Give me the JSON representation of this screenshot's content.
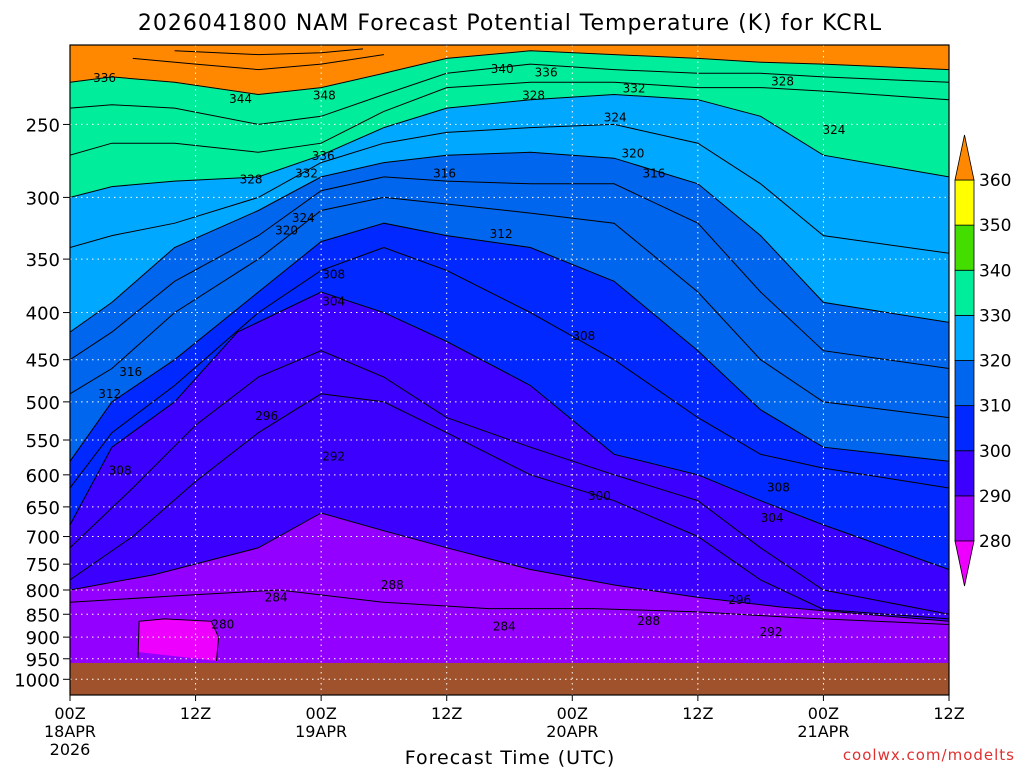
{
  "chart_data": {
    "type": "heatmap",
    "title": "2026041800 NAM Forecast Potential Temperature (K) for KCRL",
    "xlabel": "Forecast Time (UTC)",
    "ylabel": "",
    "credit": "coolwx.com/modelts",
    "x_ticks": [
      {
        "hour": 0,
        "line1": "00Z",
        "line2": "18APR",
        "line3": "2026"
      },
      {
        "hour": 12,
        "line1": "12Z",
        "line2": "",
        "line3": ""
      },
      {
        "hour": 24,
        "line1": "00Z",
        "line2": "19APR",
        "line3": ""
      },
      {
        "hour": 36,
        "line1": "12Z",
        "line2": "",
        "line3": ""
      },
      {
        "hour": 48,
        "line1": "00Z",
        "line2": "20APR",
        "line3": ""
      },
      {
        "hour": 60,
        "line1": "12Z",
        "line2": "",
        "line3": ""
      },
      {
        "hour": 72,
        "line1": "00Z",
        "line2": "21APR",
        "line3": ""
      },
      {
        "hour": 84,
        "line1": "12Z",
        "line2": "",
        "line3": ""
      }
    ],
    "xlim": [
      0,
      84
    ],
    "y_ticks": [
      250,
      300,
      350,
      400,
      450,
      500,
      550,
      600,
      650,
      700,
      750,
      800,
      850,
      900,
      950,
      1000
    ],
    "ylim": [
      205,
      1040
    ],
    "y_scale": "log",
    "grid": true,
    "colorbar": {
      "levels": [
        280,
        290,
        300,
        310,
        320,
        330,
        340,
        350,
        360
      ],
      "colors": [
        "#9400ff",
        "#3c00ff",
        "#0028ff",
        "#0066ee",
        "#00a8ff",
        "#00ee9c",
        "#44dd00",
        "#ffff00",
        "#ff9900"
      ],
      "low_color": "#ee00ff",
      "high_color": "#ff8800"
    },
    "ground_color": "#a0522d",
    "surface_pressure_hpa": 960,
    "isentropes": [
      {
        "k": 280,
        "points": [
          [
            6.5,
            934
          ],
          [
            6.5,
            948
          ],
          [
            6.6,
            865
          ],
          [
            9,
            860
          ],
          [
            13.5,
            865
          ],
          [
            14.2,
            900
          ],
          [
            14,
            955
          ]
        ]
      },
      {
        "k": 284,
        "points": [
          [
            0,
            825
          ],
          [
            10,
            812
          ],
          [
            20,
            800
          ],
          [
            30,
            825
          ],
          [
            40,
            838
          ],
          [
            50,
            838
          ],
          [
            60,
            845
          ],
          [
            70,
            858
          ],
          [
            80,
            868
          ],
          [
            84,
            872
          ]
        ]
      },
      {
        "k": 288,
        "points": [
          [
            0,
            800
          ],
          [
            8,
            770
          ],
          [
            18,
            720
          ],
          [
            24,
            660
          ],
          [
            30,
            690
          ],
          [
            36,
            720
          ],
          [
            44,
            760
          ],
          [
            52,
            790
          ],
          [
            60,
            815
          ],
          [
            68,
            835
          ],
          [
            76,
            850
          ],
          [
            84,
            865
          ]
        ]
      },
      {
        "k": 292,
        "points": [
          [
            0,
            780
          ],
          [
            6,
            700
          ],
          [
            12,
            610
          ],
          [
            18,
            540
          ],
          [
            24,
            490
          ],
          [
            30,
            500
          ],
          [
            36,
            540
          ],
          [
            44,
            600
          ],
          [
            52,
            640
          ],
          [
            60,
            700
          ],
          [
            66,
            780
          ],
          [
            72,
            840
          ],
          [
            84,
            860
          ]
        ]
      },
      {
        "k": 296,
        "points": [
          [
            0,
            720
          ],
          [
            6,
            620
          ],
          [
            12,
            530
          ],
          [
            18,
            470
          ],
          [
            24,
            440
          ],
          [
            30,
            470
          ],
          [
            36,
            520
          ],
          [
            44,
            560
          ],
          [
            52,
            600
          ],
          [
            60,
            640
          ],
          [
            66,
            720
          ],
          [
            72,
            800
          ],
          [
            84,
            850
          ]
        ]
      },
      {
        "k": 300,
        "points": [
          [
            0,
            680
          ],
          [
            4,
            560
          ],
          [
            10,
            500
          ],
          [
            16,
            420
          ],
          [
            24,
            380
          ],
          [
            30,
            400
          ],
          [
            36,
            430
          ],
          [
            44,
            480
          ],
          [
            52,
            570
          ],
          [
            60,
            600
          ],
          [
            66,
            640
          ],
          [
            72,
            680
          ],
          [
            84,
            760
          ]
        ]
      },
      {
        "k": 304,
        "points": [
          [
            0,
            620
          ],
          [
            4,
            540
          ],
          [
            10,
            480
          ],
          [
            18,
            400
          ],
          [
            24,
            360
          ],
          [
            30,
            340
          ],
          [
            36,
            360
          ],
          [
            44,
            400
          ],
          [
            52,
            450
          ],
          [
            60,
            520
          ],
          [
            66,
            570
          ],
          [
            72,
            590
          ],
          [
            84,
            620
          ]
        ]
      },
      {
        "k": 308,
        "points": [
          [
            0,
            580
          ],
          [
            4,
            500
          ],
          [
            10,
            450
          ],
          [
            18,
            380
          ],
          [
            24,
            335
          ],
          [
            30,
            320
          ],
          [
            36,
            330
          ],
          [
            44,
            340
          ],
          [
            52,
            370
          ],
          [
            60,
            440
          ],
          [
            66,
            510
          ],
          [
            72,
            560
          ],
          [
            84,
            580
          ]
        ]
      },
      {
        "k": 312,
        "points": [
          [
            0,
            490
          ],
          [
            4,
            460
          ],
          [
            10,
            400
          ],
          [
            18,
            350
          ],
          [
            24,
            310
          ],
          [
            30,
            300
          ],
          [
            36,
            305
          ],
          [
            44,
            312
          ],
          [
            52,
            320
          ],
          [
            60,
            380
          ],
          [
            66,
            450
          ],
          [
            72,
            500
          ],
          [
            84,
            520
          ]
        ]
      },
      {
        "k": 316,
        "points": [
          [
            0,
            450
          ],
          [
            4,
            420
          ],
          [
            10,
            370
          ],
          [
            18,
            330
          ],
          [
            24,
            295
          ],
          [
            30,
            285
          ],
          [
            36,
            288
          ],
          [
            44,
            290
          ],
          [
            52,
            290
          ],
          [
            60,
            320
          ],
          [
            66,
            380
          ],
          [
            72,
            440
          ],
          [
            84,
            460
          ]
        ]
      },
      {
        "k": 320,
        "points": [
          [
            0,
            420
          ],
          [
            4,
            390
          ],
          [
            10,
            340
          ],
          [
            18,
            310
          ],
          [
            24,
            285
          ],
          [
            30,
            275
          ],
          [
            36,
            270
          ],
          [
            44,
            268
          ],
          [
            52,
            272
          ],
          [
            60,
            290
          ],
          [
            66,
            330
          ],
          [
            72,
            390
          ],
          [
            84,
            410
          ]
        ]
      },
      {
        "k": 324,
        "points": [
          [
            0,
            340
          ],
          [
            4,
            330
          ],
          [
            10,
            320
          ],
          [
            18,
            300
          ],
          [
            24,
            275
          ],
          [
            30,
            262
          ],
          [
            36,
            255
          ],
          [
            44,
            252
          ],
          [
            52,
            250
          ],
          [
            60,
            262
          ],
          [
            66,
            290
          ],
          [
            72,
            330
          ],
          [
            84,
            345
          ]
        ]
      },
      {
        "k": 328,
        "points": [
          [
            0,
            300
          ],
          [
            4,
            292
          ],
          [
            10,
            288
          ],
          [
            18,
            285
          ],
          [
            24,
            270
          ],
          [
            30,
            252
          ],
          [
            36,
            240
          ],
          [
            44,
            235
          ],
          [
            52,
            232
          ],
          [
            60,
            235
          ],
          [
            66,
            245
          ],
          [
            72,
            270
          ],
          [
            84,
            285
          ]
        ]
      },
      {
        "k": 332,
        "points": [
          [
            0,
            270
          ],
          [
            4,
            262
          ],
          [
            10,
            262
          ],
          [
            18,
            268
          ],
          [
            24,
            262
          ],
          [
            30,
            242
          ],
          [
            36,
            228
          ],
          [
            44,
            225
          ],
          [
            52,
            225
          ],
          [
            60,
            228
          ],
          [
            66,
            228
          ],
          [
            72,
            230
          ],
          [
            84,
            235
          ]
        ]
      },
      {
        "k": 336,
        "points": [
          [
            0,
            240
          ],
          [
            4,
            238
          ],
          [
            10,
            240
          ],
          [
            18,
            250
          ],
          [
            24,
            245
          ],
          [
            30,
            232
          ],
          [
            36,
            220
          ],
          [
            44,
            215
          ],
          [
            52,
            218
          ],
          [
            60,
            220
          ],
          [
            66,
            220
          ],
          [
            72,
            222
          ],
          [
            84,
            225
          ]
        ]
      },
      {
        "k": 340,
        "points": [
          [
            0,
            225
          ],
          [
            4,
            222
          ],
          [
            10,
            225
          ],
          [
            18,
            232
          ],
          [
            24,
            228
          ],
          [
            30,
            220
          ],
          [
            36,
            212
          ],
          [
            44,
            208
          ],
          [
            52,
            210
          ],
          [
            60,
            212
          ],
          [
            66,
            214
          ],
          [
            72,
            215
          ],
          [
            84,
            218
          ]
        ]
      },
      {
        "k": 344,
        "points": [
          [
            6,
            212
          ],
          [
            12,
            215
          ],
          [
            18,
            218
          ],
          [
            24,
            215
          ],
          [
            30,
            210
          ]
        ]
      },
      {
        "k": 348,
        "points": [
          [
            10,
            208
          ],
          [
            18,
            210
          ],
          [
            24,
            209
          ],
          [
            28,
            207
          ]
        ]
      }
    ],
    "contour_labels": [
      {
        "text": "336",
        "hour": 3.3,
        "p": 222
      },
      {
        "text": "344",
        "hour": 16.3,
        "p": 234
      },
      {
        "text": "348",
        "hour": 24.3,
        "p": 232
      },
      {
        "text": "340",
        "hour": 41.3,
        "p": 217
      },
      {
        "text": "336",
        "hour": 45.5,
        "p": 219
      },
      {
        "text": "328",
        "hour": 68.1,
        "p": 224
      },
      {
        "text": "328",
        "hour": 44.3,
        "p": 232
      },
      {
        "text": "332",
        "hour": 53.9,
        "p": 228
      },
      {
        "text": "324",
        "hour": 52.1,
        "p": 245
      },
      {
        "text": "324",
        "hour": 73.0,
        "p": 253
      },
      {
        "text": "320",
        "hour": 53.8,
        "p": 268
      },
      {
        "text": "316",
        "hour": 55.8,
        "p": 282
      },
      {
        "text": "316",
        "hour": 35.8,
        "p": 282
      },
      {
        "text": "336",
        "hour": 24.2,
        "p": 270
      },
      {
        "text": "332",
        "hour": 22.6,
        "p": 282
      },
      {
        "text": "328",
        "hour": 17.3,
        "p": 286
      },
      {
        "text": "324",
        "hour": 22.3,
        "p": 315
      },
      {
        "text": "320",
        "hour": 20.7,
        "p": 325
      },
      {
        "text": "312",
        "hour": 41.2,
        "p": 328
      },
      {
        "text": "308",
        "hour": 25.2,
        "p": 363
      },
      {
        "text": "304",
        "hour": 25.2,
        "p": 388
      },
      {
        "text": "308",
        "hour": 49.1,
        "p": 423
      },
      {
        "text": "316",
        "hour": 5.8,
        "p": 463
      },
      {
        "text": "312",
        "hour": 3.8,
        "p": 489
      },
      {
        "text": "296",
        "hour": 18.8,
        "p": 517
      },
      {
        "text": "292",
        "hour": 25.2,
        "p": 572
      },
      {
        "text": "308",
        "hour": 4.8,
        "p": 592
      },
      {
        "text": "308",
        "hour": 67.7,
        "p": 618
      },
      {
        "text": "300",
        "hour": 50.6,
        "p": 631
      },
      {
        "text": "304",
        "hour": 67.1,
        "p": 667
      },
      {
        "text": "288",
        "hour": 30.8,
        "p": 788
      },
      {
        "text": "284",
        "hour": 19.7,
        "p": 813
      },
      {
        "text": "296",
        "hour": 64.0,
        "p": 818
      },
      {
        "text": "288",
        "hour": 55.3,
        "p": 862
      },
      {
        "text": "284",
        "hour": 41.5,
        "p": 874
      },
      {
        "text": "292",
        "hour": 67.0,
        "p": 886
      },
      {
        "text": "280",
        "hour": 14.6,
        "p": 870
      }
    ]
  }
}
